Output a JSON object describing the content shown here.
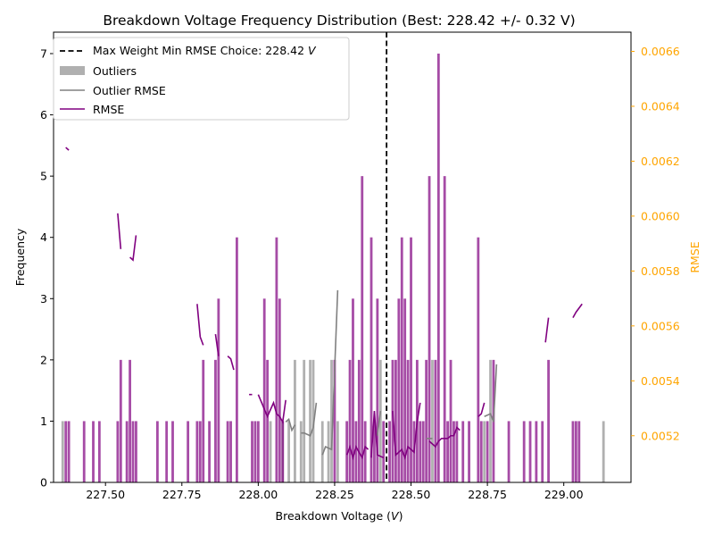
{
  "chart_data": {
    "type": "bar",
    "title": "Breakdown Voltage Frequency Distribution (Best: 228.42 +/- 0.32 V)",
    "xlabel": "Breakdown Voltage (",
    "xlabel_var": "V",
    "xlabel_end": ")",
    "ylabel": "Frequency",
    "ylabel_right": "RMSE",
    "xlim": [
      227.33,
      229.22
    ],
    "ylim": [
      0,
      7.35
    ],
    "ylim_right": [
      0.00503,
      0.00667
    ],
    "x_ticks": [
      227.5,
      227.75,
      228.0,
      228.25,
      228.5,
      228.75,
      229.0
    ],
    "x_tick_labels": [
      "227.50",
      "227.75",
      "228.00",
      "228.25",
      "228.50",
      "228.75",
      "229.00"
    ],
    "y_ticks": [
      0,
      1,
      2,
      3,
      4,
      5,
      6,
      7
    ],
    "y_tick_labels": [
      "0",
      "1",
      "2",
      "3",
      "4",
      "5",
      "6",
      "7"
    ],
    "y_right_ticks": [
      0.0052,
      0.0054,
      0.0056,
      0.0058,
      0.006,
      0.0062,
      0.0064,
      0.0066
    ],
    "y_right_tick_labels": [
      "0.0052",
      "0.0054",
      "0.0056",
      "0.0058",
      "0.0060",
      "0.0062",
      "0.0064",
      "0.0066"
    ],
    "best_voltage": 228.42,
    "colors": {
      "rmse": "#800080",
      "outliers": "#b0b0b0",
      "outlier_rmse": "#808080",
      "vline": "#000000",
      "right_axis": "#ffa500"
    },
    "legend": {
      "placement": "top-left",
      "entries": [
        {
          "label": "Max Weight Min RMSE Choice: 228.42 ",
          "label_var": "V",
          "style": "dashed-line"
        },
        {
          "label": "Outliers",
          "style": "patch"
        },
        {
          "label": "Outlier RMSE",
          "style": "gray-line"
        },
        {
          "label": "RMSE",
          "style": "purple-line"
        }
      ]
    },
    "series": [
      {
        "name": "Outliers",
        "kind": "bar",
        "points": [
          [
            227.36,
            1
          ],
          [
            228.04,
            1
          ],
          [
            228.08,
            1
          ],
          [
            228.1,
            1
          ],
          [
            228.12,
            2
          ],
          [
            228.14,
            1
          ],
          [
            228.15,
            2
          ],
          [
            228.17,
            2
          ],
          [
            228.18,
            2
          ],
          [
            228.21,
            1
          ],
          [
            228.23,
            1
          ],
          [
            228.24,
            2
          ],
          [
            228.26,
            1
          ],
          [
            228.4,
            2
          ],
          [
            228.57,
            2
          ],
          [
            228.74,
            1
          ],
          [
            228.76,
            2
          ],
          [
            229.13,
            1
          ]
        ]
      },
      {
        "name": "RMSE histogram",
        "kind": "bar",
        "points": [
          [
            227.37,
            1
          ],
          [
            227.38,
            1
          ],
          [
            227.43,
            1
          ],
          [
            227.46,
            1
          ],
          [
            227.48,
            1
          ],
          [
            227.54,
            1
          ],
          [
            227.55,
            2
          ],
          [
            227.57,
            1
          ],
          [
            227.58,
            2
          ],
          [
            227.59,
            1
          ],
          [
            227.6,
            1
          ],
          [
            227.67,
            1
          ],
          [
            227.7,
            1
          ],
          [
            227.72,
            1
          ],
          [
            227.77,
            1
          ],
          [
            227.8,
            1
          ],
          [
            227.81,
            1
          ],
          [
            227.82,
            2
          ],
          [
            227.84,
            1
          ],
          [
            227.86,
            2
          ],
          [
            227.87,
            3
          ],
          [
            227.9,
            1
          ],
          [
            227.91,
            1
          ],
          [
            227.93,
            4
          ],
          [
            227.98,
            1
          ],
          [
            227.99,
            1
          ],
          [
            228.0,
            1
          ],
          [
            228.02,
            3
          ],
          [
            228.03,
            2
          ],
          [
            228.06,
            4
          ],
          [
            228.07,
            3
          ],
          [
            228.08,
            1
          ],
          [
            228.25,
            2
          ],
          [
            228.29,
            1
          ],
          [
            228.3,
            2
          ],
          [
            228.31,
            3
          ],
          [
            228.32,
            1
          ],
          [
            228.33,
            2
          ],
          [
            228.34,
            5
          ],
          [
            228.35,
            1
          ],
          [
            228.37,
            4
          ],
          [
            228.38,
            1
          ],
          [
            228.39,
            3
          ],
          [
            228.41,
            1
          ],
          [
            228.43,
            1
          ],
          [
            228.44,
            2
          ],
          [
            228.45,
            2
          ],
          [
            228.46,
            3
          ],
          [
            228.47,
            4
          ],
          [
            228.48,
            3
          ],
          [
            228.49,
            2
          ],
          [
            228.5,
            4
          ],
          [
            228.51,
            1
          ],
          [
            228.52,
            2
          ],
          [
            228.53,
            1
          ],
          [
            228.54,
            1
          ],
          [
            228.55,
            2
          ],
          [
            228.56,
            5
          ],
          [
            228.58,
            2
          ],
          [
            228.59,
            7
          ],
          [
            228.61,
            5
          ],
          [
            228.62,
            1
          ],
          [
            228.63,
            2
          ],
          [
            228.64,
            1
          ],
          [
            228.65,
            1
          ],
          [
            228.67,
            1
          ],
          [
            228.69,
            1
          ],
          [
            228.72,
            4
          ],
          [
            228.73,
            1
          ],
          [
            228.75,
            1
          ],
          [
            228.77,
            2
          ],
          [
            228.82,
            1
          ],
          [
            228.87,
            1
          ],
          [
            228.89,
            1
          ],
          [
            228.91,
            1
          ],
          [
            228.93,
            1
          ],
          [
            228.95,
            2
          ],
          [
            229.03,
            1
          ],
          [
            229.04,
            1
          ],
          [
            229.05,
            1
          ]
        ]
      },
      {
        "name": "Outlier RMSE",
        "kind": "line-segments",
        "segments": [
          [
            [
              228.09,
              0.00525
            ],
            [
              228.1,
              0.00526
            ],
            [
              228.11,
              0.00522
            ],
            [
              228.12,
              0.00524
            ]
          ],
          [
            [
              228.14,
              0.00521
            ],
            [
              228.15,
              0.00521
            ],
            [
              228.17,
              0.0052
            ],
            [
              228.18,
              0.00523
            ],
            [
              228.19,
              0.00532
            ]
          ],
          [
            [
              228.21,
              0.00513
            ],
            [
              228.22,
              0.00516
            ],
            [
              228.24,
              0.00515
            ],
            [
              228.26,
              0.00573
            ]
          ],
          [
            [
              228.39,
              0.0052
            ],
            [
              228.4,
              0.00529
            ]
          ],
          [
            [
              228.55,
              0.00519
            ],
            [
              228.57,
              0.00519
            ]
          ],
          [
            [
              228.74,
              0.00527
            ],
            [
              228.76,
              0.00528
            ],
            [
              228.77,
              0.00525
            ],
            [
              228.78,
              0.00546
            ]
          ]
        ]
      },
      {
        "name": "RMSE",
        "kind": "line-segments",
        "segments": [
          [
            [
              227.37,
              0.00625
            ],
            [
              227.38,
              0.00624
            ]
          ],
          [
            [
              227.54,
              0.00601
            ],
            [
              227.55,
              0.00588
            ]
          ],
          [
            [
              227.58,
              0.00585
            ],
            [
              227.59,
              0.00584
            ],
            [
              227.6,
              0.00593
            ]
          ],
          [
            [
              227.8,
              0.00568
            ],
            [
              227.81,
              0.00556
            ],
            [
              227.82,
              0.00553
            ]
          ],
          [
            [
              227.86,
              0.00557
            ],
            [
              227.87,
              0.00549
            ]
          ],
          [
            [
              227.9,
              0.00549
            ],
            [
              227.91,
              0.00548
            ],
            [
              227.92,
              0.00544
            ]
          ],
          [
            [
              227.97,
              0.00535
            ],
            [
              227.98,
              0.00535
            ]
          ],
          [
            [
              228.0,
              0.00535
            ],
            [
              228.03,
              0.00527
            ],
            [
              228.05,
              0.00532
            ],
            [
              228.06,
              0.00528
            ],
            [
              228.07,
              0.00527
            ],
            [
              228.08,
              0.00525
            ],
            [
              228.09,
              0.00533
            ]
          ],
          [
            [
              228.29,
              0.00513
            ],
            [
              228.3,
              0.00516
            ],
            [
              228.31,
              0.00512
            ],
            [
              228.32,
              0.00516
            ],
            [
              228.33,
              0.00514
            ],
            [
              228.34,
              0.00512
            ],
            [
              228.35,
              0.00516
            ],
            [
              228.36,
              0.00515
            ]
          ],
          [
            [
              228.37,
              0.00512
            ],
            [
              228.38,
              0.00529
            ],
            [
              228.39,
              0.00513
            ],
            [
              228.41,
              0.00512
            ]
          ],
          [
            [
              228.44,
              0.00529
            ],
            [
              228.45,
              0.00513
            ],
            [
              228.46,
              0.00514
            ],
            [
              228.47,
              0.00515
            ],
            [
              228.48,
              0.00512
            ],
            [
              228.49,
              0.00516
            ],
            [
              228.5,
              0.00515
            ],
            [
              228.51,
              0.00514
            ],
            [
              228.52,
              0.00525
            ],
            [
              228.53,
              0.00532
            ]
          ],
          [
            [
              228.56,
              0.00518
            ],
            [
              228.58,
              0.00516
            ],
            [
              228.59,
              0.00518
            ],
            [
              228.6,
              0.00519
            ],
            [
              228.62,
              0.00519
            ],
            [
              228.63,
              0.0052
            ],
            [
              228.64,
              0.0052
            ],
            [
              228.65,
              0.00523
            ],
            [
              228.66,
              0.00522
            ]
          ],
          [
            [
              228.72,
              0.00527
            ],
            [
              228.73,
              0.00528
            ],
            [
              228.74,
              0.00532
            ]
          ],
          [
            [
              228.94,
              0.00554
            ],
            [
              228.95,
              0.00563
            ]
          ],
          [
            [
              229.03,
              0.00563
            ],
            [
              229.04,
              0.00565
            ],
            [
              229.06,
              0.00568
            ]
          ]
        ]
      }
    ]
  }
}
